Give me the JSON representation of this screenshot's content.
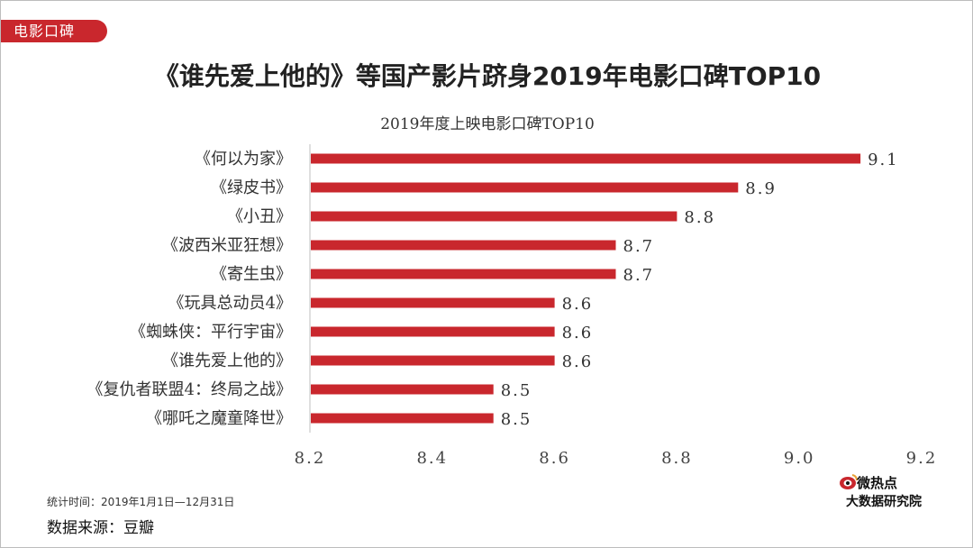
{
  "tag": "电影口碑",
  "headline": "《谁先爱上他的》等国产影片跻身2019年电影口碑TOP10",
  "chart_data": {
    "type": "bar",
    "orientation": "horizontal",
    "title": "2019年度上映电影口碑TOP10",
    "categories": [
      "《何以为家》",
      "《绿皮书》",
      "《小丑》",
      "《波西米亚狂想》",
      "《寄生虫》",
      "《玩具总动员4》",
      "《蜘蛛侠：平行宇宙》",
      "《谁先爱上他的》",
      "《复仇者联盟4：终局之战》",
      "《哪吒之魔童降世》"
    ],
    "values": [
      9.1,
      8.9,
      8.8,
      8.7,
      8.7,
      8.6,
      8.6,
      8.6,
      8.5,
      8.5
    ],
    "value_labels": [
      "9.1",
      "8.9",
      "8.8",
      "8.7",
      "8.7",
      "8.6",
      "8.6",
      "8.6",
      "8.5",
      "8.5"
    ],
    "xlim": [
      8.2,
      9.2
    ],
    "xticks": [
      "8.2",
      "8.4",
      "8.6",
      "8.8",
      "9.0",
      "9.2"
    ],
    "bar_color": "#c9272d",
    "grid": false
  },
  "footnote": "统计时间：2019年1月1日—12月31日",
  "source": "数据来源：豆瓣",
  "logo": {
    "line1": "微热点",
    "line2": "大数据研究院",
    "icon": "weibo-eye-icon"
  },
  "colors": {
    "accent": "#c9272d"
  }
}
